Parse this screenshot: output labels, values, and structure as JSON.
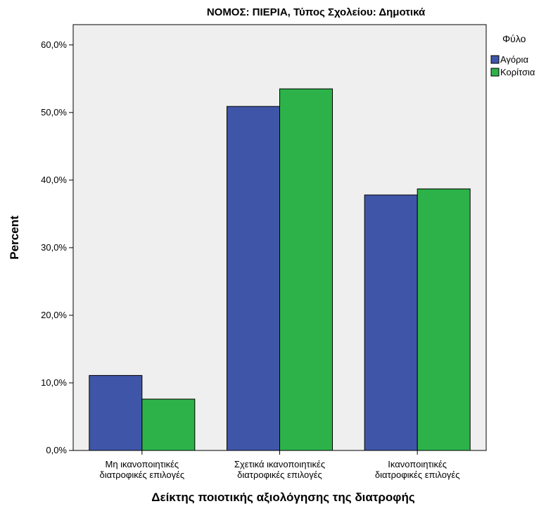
{
  "chart_data": {
    "type": "bar",
    "title": "ΝΟΜΟΣ: ΠΙΕΡΙΑ, Τύπος Σχολείου: Δημοτικά",
    "xlabel": "Δείκτης ποιοτικής αξιολόγησης της διατροφής",
    "ylabel": "Percent",
    "ylim": [
      0,
      63
    ],
    "yticks": [
      "0,0%",
      "10,0%",
      "20,0%",
      "30,0%",
      "40,0%",
      "50,0%",
      "60,0%"
    ],
    "ytick_values": [
      0,
      10,
      20,
      30,
      40,
      50,
      60
    ],
    "categories": [
      [
        "Μη ικανοποιητικές",
        "διατροφικές επιλογές"
      ],
      [
        "Σχετικά ικανοποιητικές",
        "διατροφικές επιλογές"
      ],
      [
        "Ικανοποιητικές",
        "διατροφικές επιλογές"
      ]
    ],
    "legend_title": "Φύλο",
    "legend_position": "right",
    "grid": false,
    "series": [
      {
        "name": "Αγόρια",
        "color": "#3f56a8",
        "values": [
          11.1,
          50.9,
          37.8
        ]
      },
      {
        "name": "Κορίτσια",
        "color": "#2db24a",
        "values": [
          7.6,
          53.5,
          38.7
        ]
      }
    ]
  }
}
